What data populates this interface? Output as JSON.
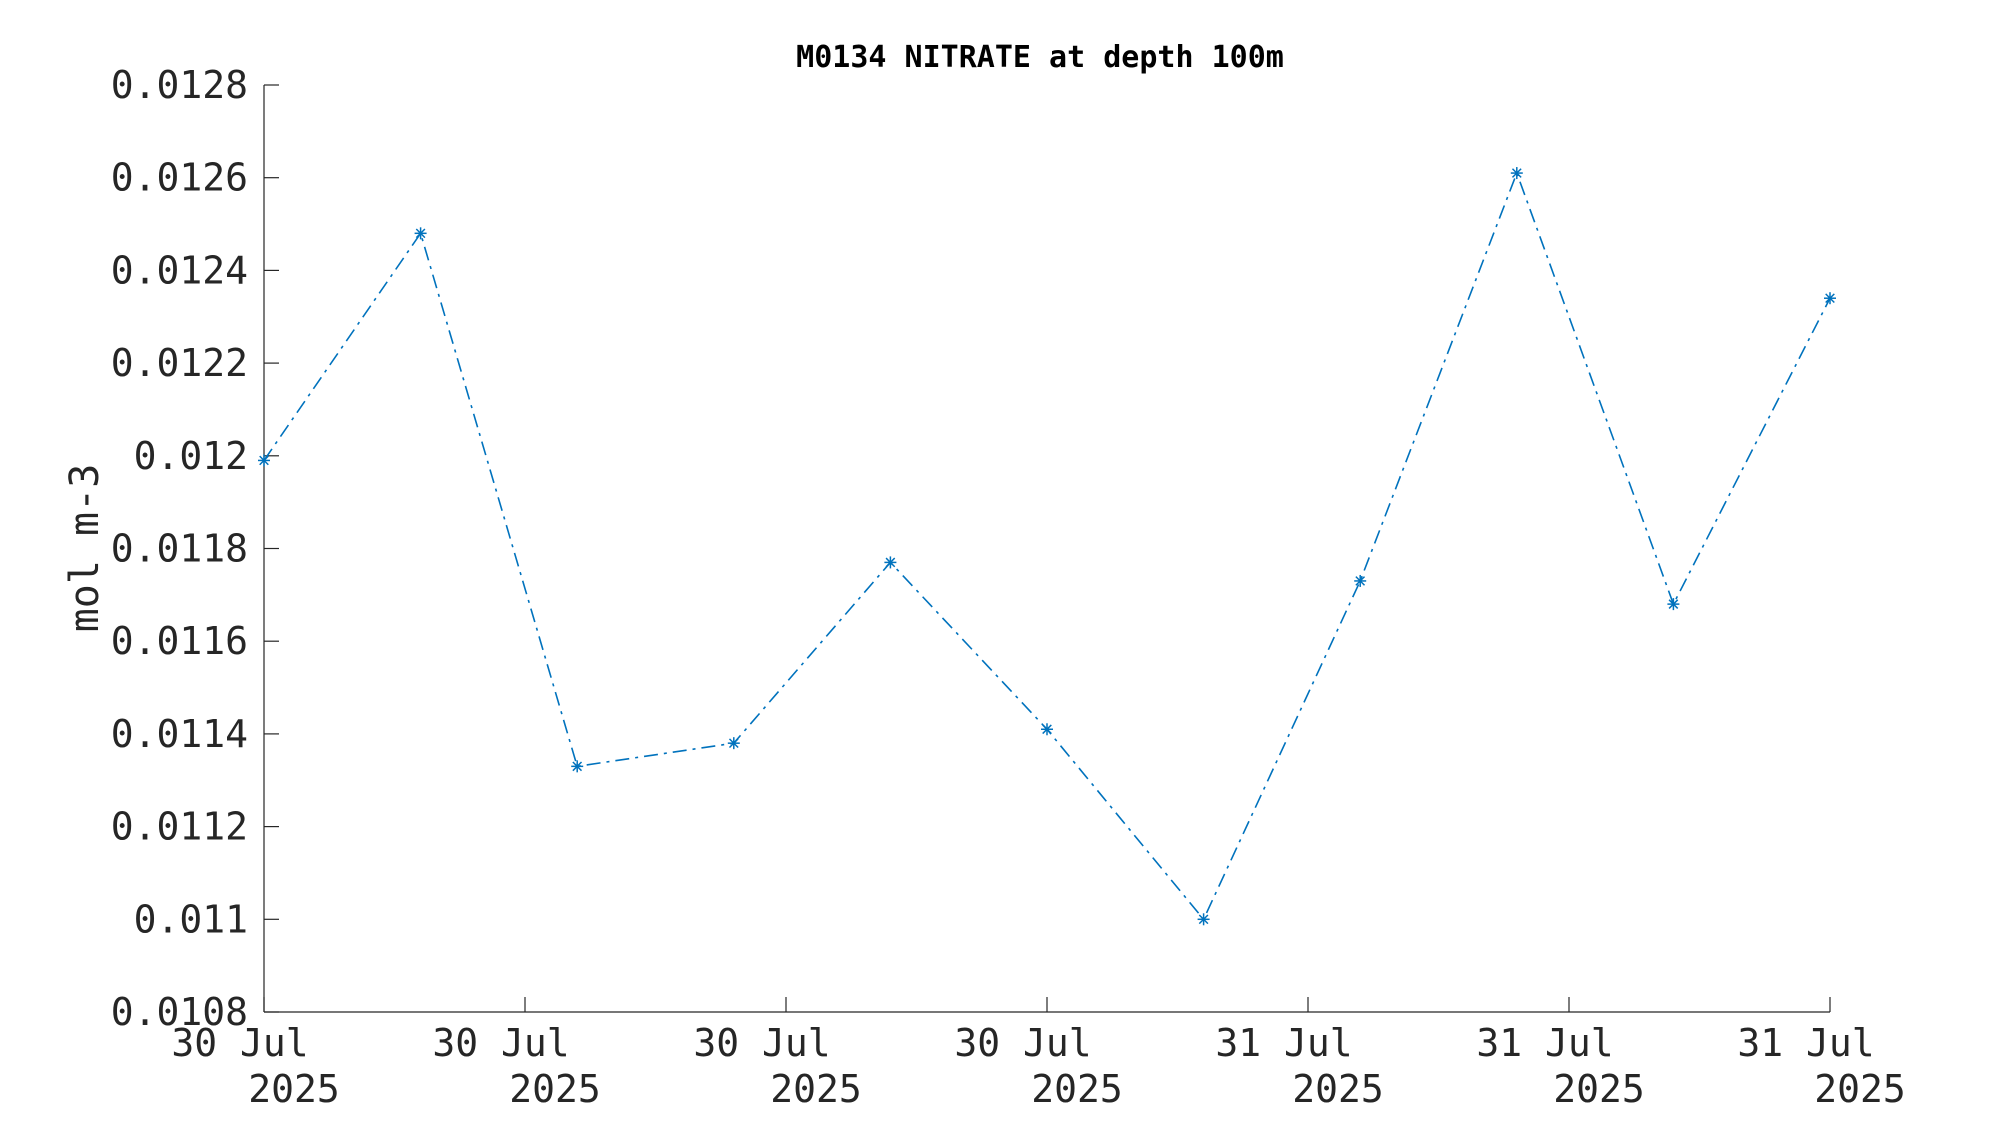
{
  "chart_data": {
    "type": "line",
    "title": "M0134 NITRATE at depth 100m",
    "xlabel": "",
    "ylabel": "mol m-3",
    "ylim": [
      0.0108,
      0.0128
    ],
    "yticks": [
      0.0108,
      0.011,
      0.0112,
      0.0114,
      0.0116,
      0.0118,
      0.012,
      0.0122,
      0.0124,
      0.0126,
      0.0128
    ],
    "ytick_labels": [
      "0.0108",
      "0.011",
      "0.0112",
      "0.0114",
      "0.0116",
      "0.0118",
      "0.012",
      "0.0122",
      "0.0124",
      "0.0126",
      "0.0128"
    ],
    "xlim": [
      0,
      6
    ],
    "xticks": [
      0,
      1,
      2,
      3,
      4,
      5,
      6
    ],
    "xtick_labels": [
      [
        "30 Jul",
        "2025"
      ],
      [
        "30 Jul",
        "2025"
      ],
      [
        "30 Jul",
        "2025"
      ],
      [
        "30 Jul",
        "2025"
      ],
      [
        "31 Jul",
        "2025"
      ],
      [
        "31 Jul",
        "2025"
      ],
      [
        "31 Jul",
        "2025"
      ]
    ],
    "grid": false,
    "series": [
      {
        "color": "#0072BD",
        "line_style": "dash-dot",
        "marker": "asterisk",
        "x": [
          0,
          0.6,
          1.2,
          1.8,
          2.4,
          3.0,
          3.6,
          4.2,
          4.8,
          5.4,
          6.0
        ],
        "y": [
          0.01199,
          0.01248,
          0.01133,
          0.01138,
          0.01177,
          0.01141,
          0.011,
          0.01173,
          0.01261,
          0.01168,
          0.01234
        ]
      }
    ]
  }
}
